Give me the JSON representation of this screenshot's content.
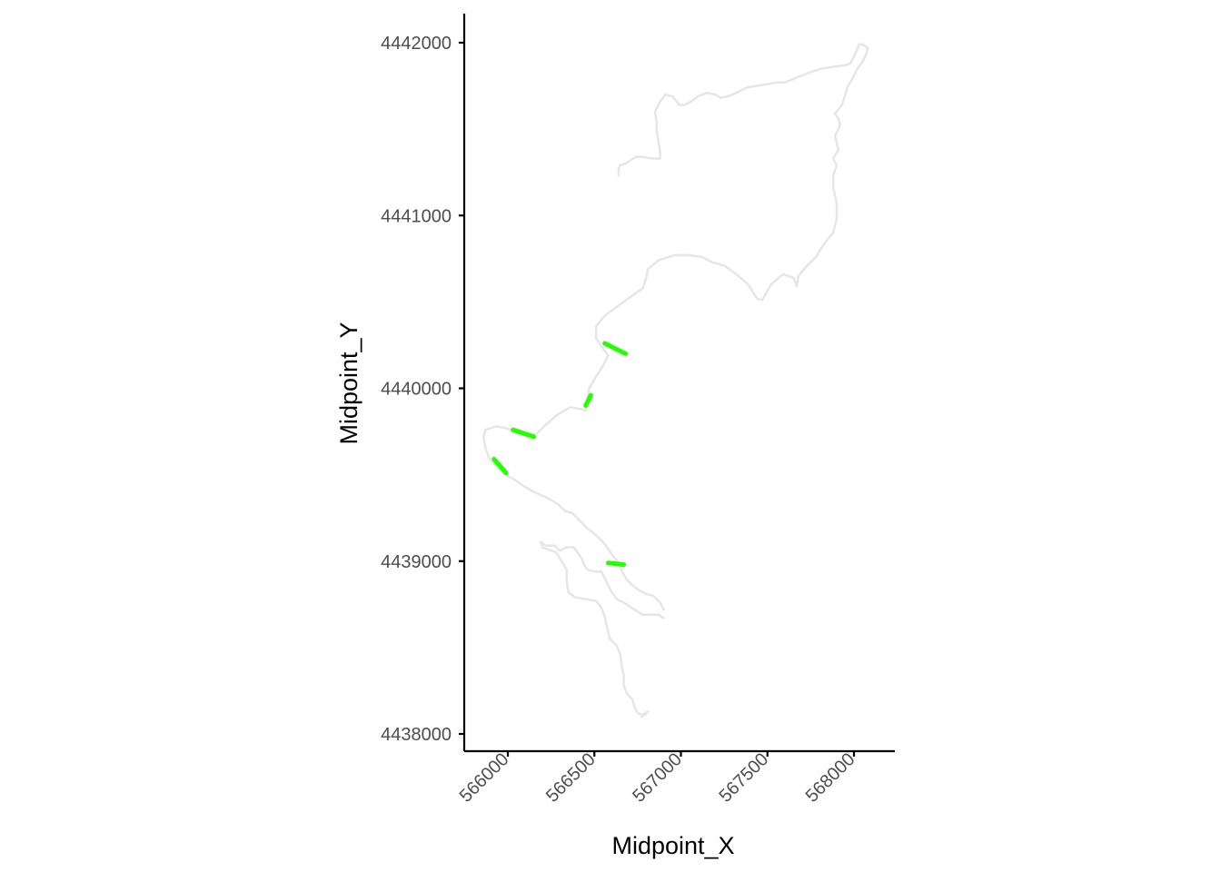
{
  "chart_data": {
    "type": "scatter",
    "title": "",
    "xlabel": "Midpoint_X",
    "ylabel": "Midpoint_Y",
    "xlim": [
      565730,
      568180
    ],
    "ylim": [
      4437900,
      4442170
    ],
    "x_ticks": [
      566000,
      566500,
      567000,
      567500,
      568000
    ],
    "x_tick_labels": [
      "566000",
      "566500",
      "567000",
      "567500",
      "568000"
    ],
    "y_ticks": [
      4438000,
      4439000,
      4440000,
      4441000,
      4442000
    ],
    "y_tick_labels": [
      "4438000",
      "4439000",
      "4440000",
      "4441000",
      "4442000"
    ],
    "grid": false,
    "legend": "none",
    "colors": {
      "background_line": "#e6e6e6",
      "segment": "#22ff00",
      "axis": "#000000",
      "tick_label": "#4d4d4d"
    },
    "background_lines": [
      [
        [
          565870,
          4439760
        ],
        [
          565930,
          4439780
        ],
        [
          565990,
          4439770
        ],
        [
          566060,
          4439740
        ],
        [
          566120,
          4439720
        ],
        [
          566170,
          4439740
        ],
        [
          566220,
          4439790
        ],
        [
          566290,
          4439850
        ],
        [
          566360,
          4439890
        ],
        [
          566420,
          4439880
        ],
        [
          566450,
          4439870
        ],
        [
          566460,
          4439930
        ],
        [
          566470,
          4440000
        ],
        [
          566510,
          4440070
        ],
        [
          566550,
          4440130
        ],
        [
          566580,
          4440190
        ],
        [
          566550,
          4440230
        ],
        [
          566510,
          4440290
        ],
        [
          566510,
          4440360
        ],
        [
          566560,
          4440420
        ],
        [
          566640,
          4440480
        ],
        [
          566710,
          4440530
        ],
        [
          566780,
          4440580
        ],
        [
          566800,
          4440640
        ],
        [
          566810,
          4440690
        ],
        [
          566870,
          4440740
        ],
        [
          566960,
          4440770
        ],
        [
          567050,
          4440770
        ],
        [
          567120,
          4440760
        ],
        [
          567180,
          4440730
        ],
        [
          567250,
          4440710
        ],
        [
          567320,
          4440660
        ],
        [
          567390,
          4440600
        ],
        [
          567440,
          4440520
        ],
        [
          567470,
          4440510
        ],
        [
          567520,
          4440600
        ],
        [
          567590,
          4440660
        ],
        [
          567650,
          4440640
        ],
        [
          567670,
          4440590
        ],
        [
          567680,
          4440650
        ],
        [
          567720,
          4440700
        ],
        [
          567780,
          4440760
        ],
        [
          567830,
          4440840
        ],
        [
          567880,
          4440900
        ],
        [
          567900,
          4440980
        ],
        [
          567900,
          4441070
        ],
        [
          567880,
          4441160
        ],
        [
          567880,
          4441230
        ],
        [
          567900,
          4441290
        ],
        [
          567880,
          4441330
        ],
        [
          567910,
          4441380
        ],
        [
          567890,
          4441460
        ],
        [
          567920,
          4441520
        ],
        [
          567910,
          4441560
        ],
        [
          567890,
          4441590
        ],
        [
          567930,
          4441640
        ],
        [
          567950,
          4441700
        ],
        [
          567960,
          4441740
        ],
        [
          567990,
          4441790
        ],
        [
          568020,
          4441850
        ],
        [
          568050,
          4441890
        ],
        [
          568070,
          4441930
        ],
        [
          568080,
          4441970
        ],
        [
          568050,
          4441990
        ],
        [
          568030,
          4441990
        ],
        [
          568000,
          4441920
        ],
        [
          567980,
          4441880
        ],
        [
          567950,
          4441870
        ],
        [
          567880,
          4441860
        ],
        [
          567810,
          4441850
        ],
        [
          567750,
          4441830
        ],
        [
          567700,
          4441810
        ],
        [
          567650,
          4441790
        ],
        [
          567600,
          4441770
        ],
        [
          567550,
          4441770
        ],
        [
          567500,
          4441760
        ],
        [
          567430,
          4441750
        ],
        [
          567380,
          4441740
        ],
        [
          567340,
          4441720
        ],
        [
          567300,
          4441700
        ],
        [
          567270,
          4441690
        ],
        [
          567230,
          4441680
        ],
        [
          567200,
          4441700
        ],
        [
          567150,
          4441710
        ],
        [
          567100,
          4441690
        ],
        [
          567060,
          4441660
        ],
        [
          567020,
          4441640
        ],
        [
          566990,
          4441640
        ],
        [
          566950,
          4441690
        ],
        [
          566910,
          4441700
        ],
        [
          566880,
          4441660
        ],
        [
          566850,
          4441600
        ],
        [
          566860,
          4441540
        ],
        [
          566860,
          4441490
        ],
        [
          566870,
          4441430
        ],
        [
          566880,
          4441370
        ],
        [
          566880,
          4441330
        ],
        [
          566830,
          4441330
        ],
        [
          566780,
          4441340
        ],
        [
          566740,
          4441340
        ],
        [
          566710,
          4441320
        ],
        [
          566680,
          4441300
        ],
        [
          566650,
          4441290
        ],
        [
          566640,
          4441270
        ],
        [
          566640,
          4441230
        ]
      ],
      [
        [
          565870,
          4439760
        ],
        [
          565860,
          4439720
        ],
        [
          565870,
          4439660
        ],
        [
          565890,
          4439600
        ],
        [
          565930,
          4439550
        ],
        [
          565970,
          4439510
        ],
        [
          566040,
          4439470
        ],
        [
          566100,
          4439430
        ],
        [
          566150,
          4439400
        ],
        [
          566220,
          4439370
        ],
        [
          566290,
          4439330
        ],
        [
          566330,
          4439290
        ],
        [
          566370,
          4439280
        ],
        [
          566400,
          4439250
        ],
        [
          566420,
          4439230
        ],
        [
          566460,
          4439190
        ],
        [
          566510,
          4439150
        ],
        [
          566560,
          4439100
        ],
        [
          566600,
          4439040
        ],
        [
          566640,
          4438990
        ],
        [
          566660,
          4438940
        ],
        [
          566690,
          4438890
        ],
        [
          566720,
          4438860
        ],
        [
          566760,
          4438830
        ],
        [
          566800,
          4438810
        ],
        [
          566840,
          4438800
        ],
        [
          566880,
          4438760
        ],
        [
          566900,
          4438720
        ]
      ],
      [
        [
          566190,
          4439110
        ],
        [
          566220,
          4439090
        ],
        [
          566270,
          4439090
        ],
        [
          566300,
          4439060
        ],
        [
          566340,
          4439080
        ],
        [
          566380,
          4439080
        ],
        [
          566410,
          4439040
        ],
        [
          566430,
          4439010
        ],
        [
          566440,
          4438980
        ],
        [
          566460,
          4438950
        ],
        [
          566500,
          4438940
        ],
        [
          566540,
          4438940
        ],
        [
          566560,
          4438900
        ],
        [
          566580,
          4438860
        ],
        [
          566600,
          4438820
        ],
        [
          566630,
          4438780
        ],
        [
          566670,
          4438760
        ],
        [
          566700,
          4438740
        ],
        [
          566730,
          4438720
        ],
        [
          566780,
          4438690
        ],
        [
          566830,
          4438690
        ],
        [
          566870,
          4438690
        ],
        [
          566900,
          4438670
        ]
      ],
      [
        [
          566190,
          4439110
        ],
        [
          566200,
          4439080
        ],
        [
          566280,
          4439050
        ],
        [
          566310,
          4439000
        ],
        [
          566340,
          4438950
        ],
        [
          566340,
          4438880
        ],
        [
          566350,
          4438820
        ],
        [
          566390,
          4438790
        ],
        [
          566450,
          4438780
        ],
        [
          566510,
          4438770
        ],
        [
          566540,
          4438730
        ],
        [
          566560,
          4438680
        ],
        [
          566570,
          4438630
        ],
        [
          566580,
          4438590
        ],
        [
          566590,
          4438550
        ],
        [
          566630,
          4438510
        ],
        [
          566650,
          4438460
        ],
        [
          566660,
          4438380
        ],
        [
          566670,
          4438340
        ],
        [
          566670,
          4438280
        ],
        [
          566690,
          4438230
        ],
        [
          566720,
          4438200
        ],
        [
          566730,
          4438160
        ],
        [
          566750,
          4438120
        ],
        [
          566780,
          4438110
        ],
        [
          566810,
          4438130
        ],
        [
          566790,
          4438110
        ],
        [
          566770,
          4438100
        ]
      ]
    ],
    "segments": [
      {
        "x": [
          565920,
          565990
        ],
        "y": [
          4439590,
          4439510
        ]
      },
      {
        "x": [
          566030,
          566150
        ],
        "y": [
          4439760,
          4439720
        ]
      },
      {
        "x": [
          566450,
          566480
        ],
        "y": [
          4439900,
          4439960
        ]
      },
      {
        "x": [
          566560,
          566680
        ],
        "y": [
          4440260,
          4440200
        ]
      },
      {
        "x": [
          566580,
          566670
        ],
        "y": [
          4438990,
          4438980
        ]
      }
    ]
  }
}
